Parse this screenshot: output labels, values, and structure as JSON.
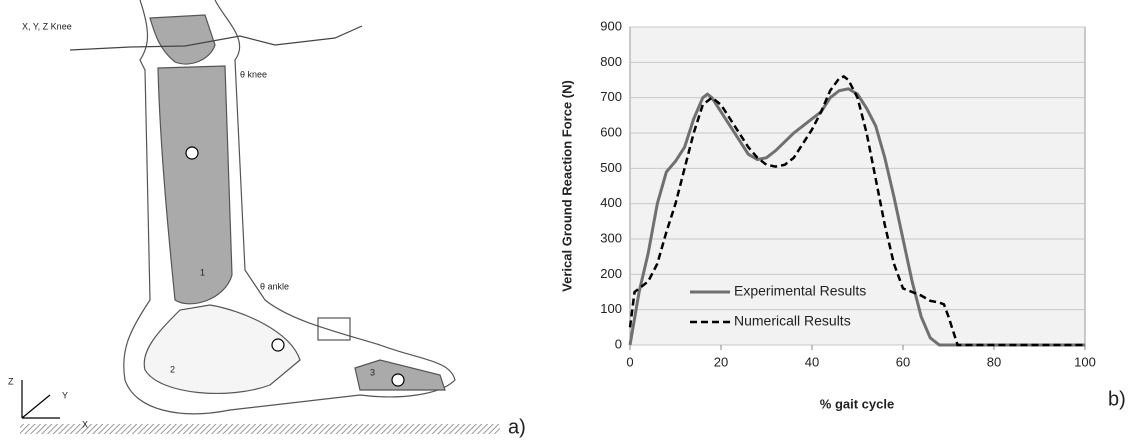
{
  "diagram": {
    "knee_label": "X, Y, Z Knee",
    "knee_angle": "θ knee",
    "ankle_angle": "θ ankle",
    "segments": [
      "1",
      "2",
      "3"
    ],
    "axes": [
      "Z",
      "Y",
      "X"
    ],
    "panel": "a)"
  },
  "panel_b": "b)",
  "chart_data": {
    "type": "line",
    "ylabel": "Verical Ground Reaction Force (N)",
    "xlabel": "% gait cycle",
    "xlim": [
      0,
      100
    ],
    "xticks": [
      0,
      20,
      40,
      60,
      80,
      100
    ],
    "ylim": [
      0,
      900
    ],
    "yticks": [
      0,
      100,
      200,
      300,
      400,
      500,
      600,
      700,
      800,
      900
    ],
    "grid": true,
    "legend": "lower-left",
    "series": [
      {
        "name": "Experimental Results",
        "color": "#707070",
        "dash": false,
        "x": [
          0,
          2,
          4,
          6,
          8,
          10,
          12,
          14,
          16,
          17,
          18,
          20,
          22,
          24,
          26,
          28,
          30,
          32,
          34,
          36,
          38,
          40,
          42,
          44,
          46,
          48,
          50,
          52,
          54,
          56,
          58,
          60,
          62,
          64,
          66,
          68,
          70,
          100
        ],
        "values": [
          0,
          150,
          260,
          400,
          490,
          520,
          560,
          640,
          700,
          710,
          700,
          660,
          620,
          580,
          540,
          525,
          530,
          550,
          575,
          600,
          620,
          640,
          660,
          700,
          720,
          725,
          710,
          670,
          620,
          530,
          420,
          300,
          180,
          80,
          20,
          0,
          0,
          0
        ]
      },
      {
        "name": "Numericall Results",
        "color": "#000000",
        "dash": true,
        "x": [
          0,
          1,
          2,
          4,
          6,
          8,
          10,
          12,
          14,
          16,
          18,
          20,
          22,
          24,
          26,
          28,
          30,
          32,
          34,
          36,
          38,
          40,
          42,
          44,
          46,
          47,
          48,
          50,
          52,
          54,
          56,
          58,
          60,
          62,
          64,
          66,
          68,
          69,
          70,
          72,
          100
        ],
        "values": [
          50,
          150,
          160,
          180,
          230,
          320,
          400,
          500,
          600,
          680,
          700,
          680,
          640,
          600,
          560,
          530,
          510,
          505,
          510,
          530,
          570,
          610,
          660,
          720,
          755,
          760,
          750,
          700,
          600,
          470,
          340,
          230,
          160,
          150,
          140,
          125,
          120,
          115,
          80,
          0,
          0
        ]
      }
    ]
  }
}
